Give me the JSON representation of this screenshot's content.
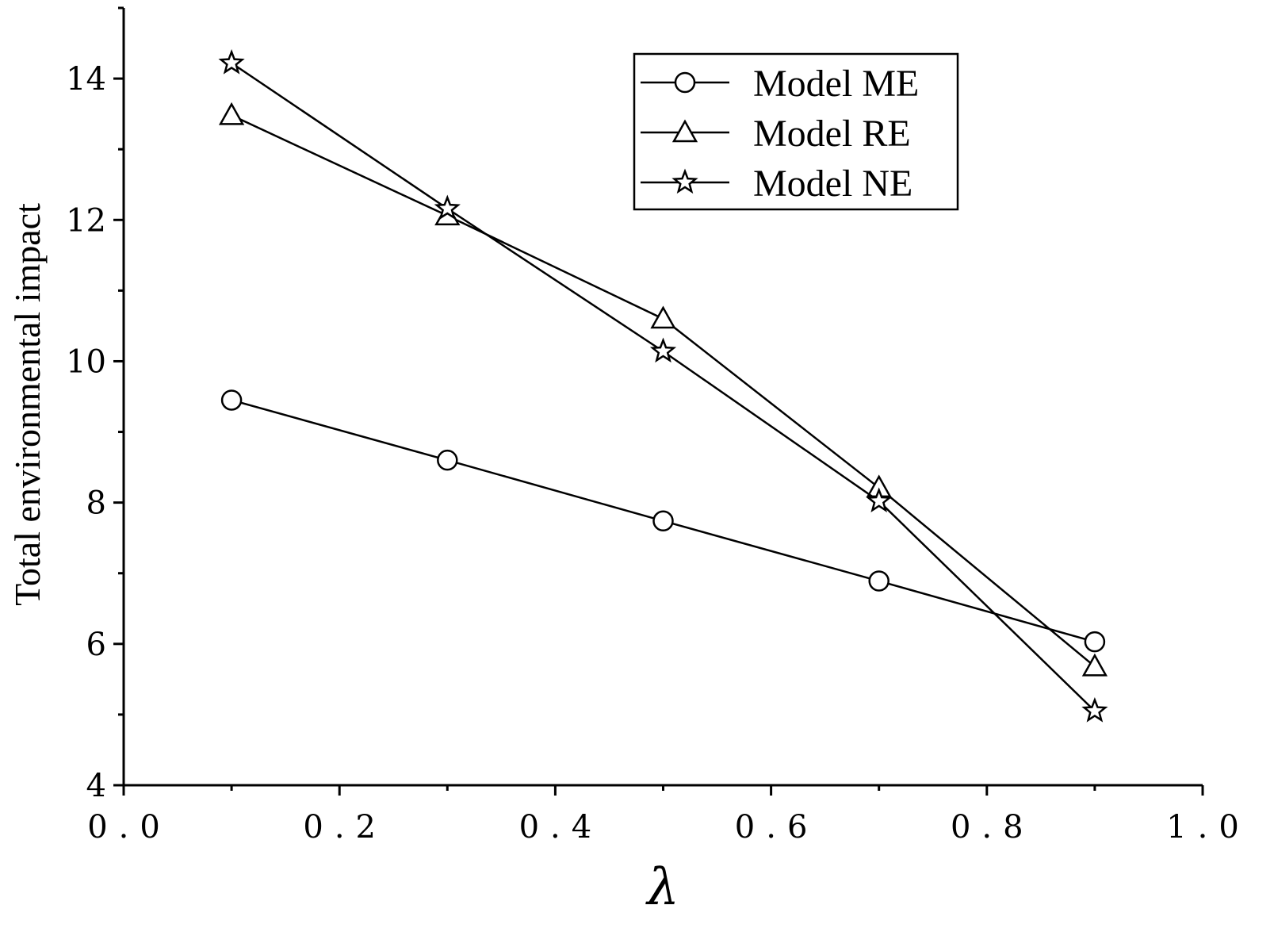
{
  "chart_data": {
    "type": "line",
    "title": "",
    "xlabel": "λ",
    "ylabel": "Total environmental impact",
    "xlim": [
      0.0,
      1.0
    ],
    "ylim": [
      4,
      15
    ],
    "x_ticks": [
      0.0,
      0.2,
      0.4,
      0.6,
      0.8,
      1.0
    ],
    "x_tick_labels": [
      "0.0",
      "0.2",
      "0.4",
      "0.6",
      "0.8",
      "1.0"
    ],
    "y_ticks": [
      4,
      6,
      8,
      10,
      12,
      14
    ],
    "y_tick_labels": [
      "4",
      "6",
      "8",
      "10",
      "12",
      "14"
    ],
    "y_minor_ticks": [
      5,
      7,
      9,
      11,
      13,
      15
    ],
    "x_minor_ticks": [
      0.1,
      0.3,
      0.5,
      0.7,
      0.9
    ],
    "grid": false,
    "legend_position": "top-right",
    "x": [
      0.1,
      0.3,
      0.5,
      0.7,
      0.9
    ],
    "series": [
      {
        "name": "Model ME",
        "marker": "circle",
        "values": [
          9.45,
          8.6,
          7.74,
          6.89,
          6.03
        ]
      },
      {
        "name": "Model RE",
        "marker": "triangle",
        "values": [
          13.48,
          12.06,
          10.6,
          8.21,
          5.68
        ]
      },
      {
        "name": "Model NE",
        "marker": "star",
        "values": [
          14.22,
          12.16,
          10.14,
          8.02,
          5.05
        ]
      }
    ],
    "colors": {
      "line": "#000000",
      "marker_fill": "#ffffff"
    }
  }
}
